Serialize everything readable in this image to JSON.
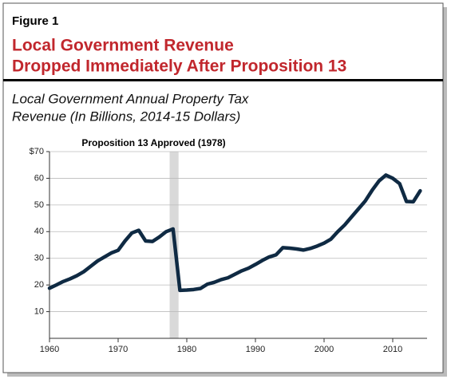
{
  "figure_label": "Figure 1",
  "title": [
    "Local Government Revenue",
    "Dropped Immediately After Proposition 13"
  ],
  "subtitle": [
    "Local Government Annual Property Tax",
    "Revenue (In Billions, 2014-15 Dollars)"
  ],
  "chart_data": {
    "type": "line",
    "x": [
      1960,
      1961,
      1962,
      1963,
      1964,
      1965,
      1966,
      1967,
      1968,
      1969,
      1970,
      1971,
      1972,
      1973,
      1974,
      1975,
      1976,
      1977,
      1978,
      1979,
      1980,
      1981,
      1982,
      1983,
      1984,
      1985,
      1986,
      1987,
      1988,
      1989,
      1990,
      1991,
      1992,
      1993,
      1994,
      1995,
      1996,
      1997,
      1998,
      1999,
      2000,
      2001,
      2002,
      2003,
      2004,
      2005,
      2006,
      2007,
      2008,
      2009,
      2010,
      2011,
      2012,
      2013,
      2014
    ],
    "series": [
      {
        "name": "Local Government Annual Property Tax Revenue",
        "color": "#0f2a43",
        "values": [
          18.8,
          20,
          21.3,
          22.3,
          23.5,
          25,
          27,
          29,
          30.5,
          32,
          33,
          36.5,
          39.5,
          40.5,
          36.5,
          36.3,
          38,
          40,
          41,
          18,
          18.1,
          18.3,
          18.7,
          20.3,
          21,
          22,
          22.7,
          24,
          25.3,
          26.3,
          27.7,
          29.2,
          30.5,
          31.3,
          34,
          33.8,
          33.5,
          33.1,
          33.7,
          34.6,
          35.7,
          37.2,
          40,
          42.5,
          45.5,
          48.5,
          51.5,
          55.5,
          59,
          61.2,
          60,
          58,
          51.3,
          51.2,
          55.3
        ]
      }
    ],
    "xlim": [
      1960,
      2015
    ],
    "xticks": [
      1960,
      1970,
      1980,
      1990,
      2000,
      2010
    ],
    "ylim": [
      0,
      70
    ],
    "yticks": [
      10,
      20,
      30,
      40,
      50,
      60,
      {
        "value": 70,
        "label": "$70"
      }
    ],
    "grid": true,
    "highlight": {
      "x": [
        1977.5,
        1978.8
      ],
      "label": "Proposition 13 Approved (1978)",
      "color": "#d9d9d9"
    }
  }
}
